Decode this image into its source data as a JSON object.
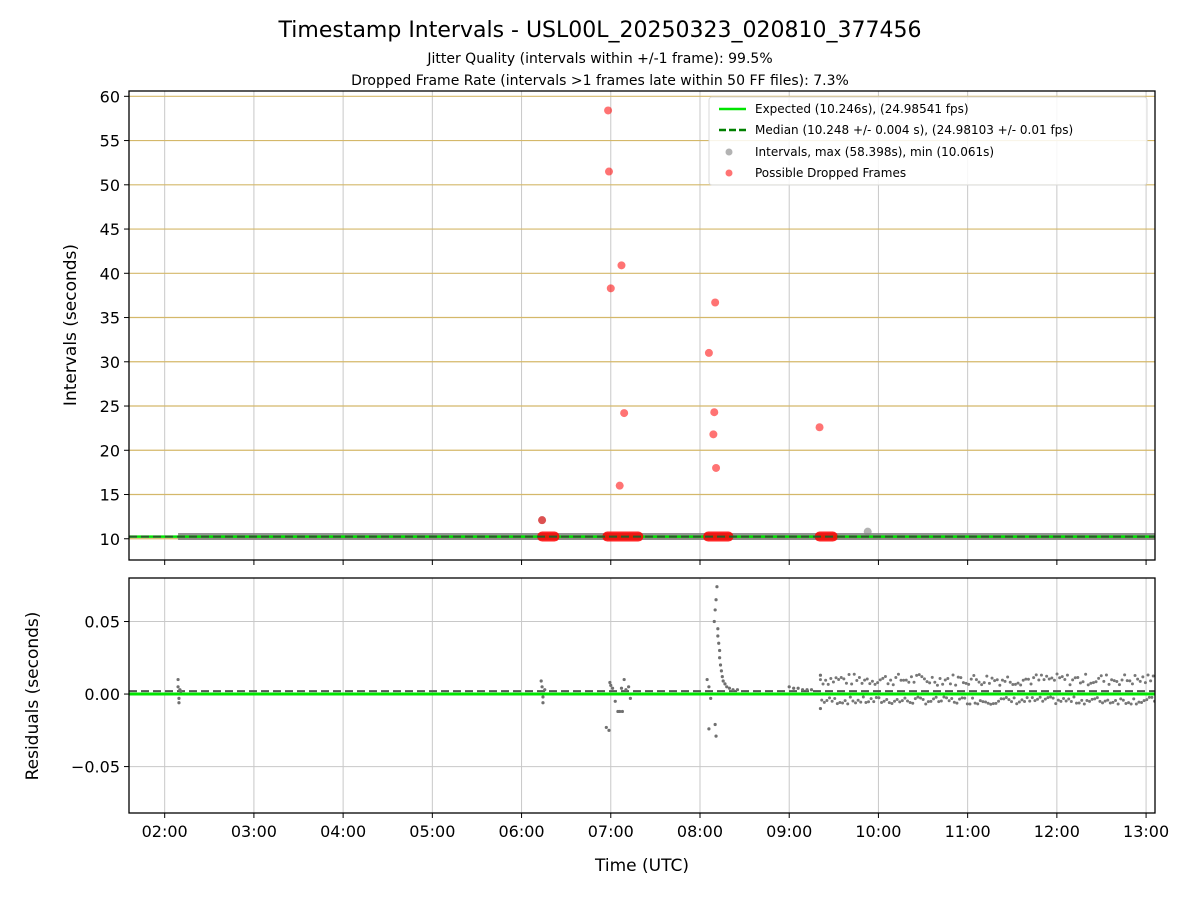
{
  "figure": {
    "title": "Timestamp Intervals - USL00L_20250323_020810_377456",
    "subtitle_lines": [
      "Jitter Quality (intervals within +/-1 frame): 99.5%",
      "Dropped Frame Rate (intervals >1 frames late within 50 FF files): 7.3%"
    ],
    "xlabel": "Time (UTC)"
  },
  "chart_data": [
    {
      "type": "scatter",
      "ylabel": "Intervals (seconds)",
      "xlim": [
        1.6,
        13.1
      ],
      "ylim": [
        7.6,
        60.6
      ],
      "yticks": [
        10,
        15,
        20,
        25,
        30,
        35,
        40,
        45,
        50,
        55,
        60
      ],
      "grid": true,
      "legend_position": "top-right",
      "colors": {
        "expected": "#00e400",
        "median": "#008000",
        "intervals": "#808080",
        "dropped": "#ff0000",
        "hgrid": "#d4b86a",
        "vgrid": "#c8c8c8"
      },
      "series": [
        {
          "name": "Expected (10.246s), (24.98541 fps)",
          "kind": "hline",
          "y": 10.246
        },
        {
          "name": "Median (10.248 +/- 0.004 s), (24.98103 +/- 0.01 fps)",
          "kind": "dashed-hline",
          "y": 10.248
        },
        {
          "name": "Intervals, max (58.398s), min (10.061s)",
          "kind": "points",
          "band": {
            "x": [
              2.15,
              13.1
            ],
            "y": 10.25
          },
          "points": [
            {
              "x": 6.23,
              "y": 12.1
            },
            {
              "x": 9.88,
              "y": 10.8
            }
          ]
        },
        {
          "name": "Possible Dropped Frames",
          "kind": "points",
          "points": [
            {
              "x": 6.23,
              "y": 12.1
            },
            {
              "x": 6.97,
              "y": 58.4
            },
            {
              "x": 6.98,
              "y": 51.5
            },
            {
              "x": 7.0,
              "y": 38.3
            },
            {
              "x": 7.12,
              "y": 40.9
            },
            {
              "x": 7.1,
              "y": 16.0
            },
            {
              "x": 7.15,
              "y": 24.2
            },
            {
              "x": 8.1,
              "y": 31.0
            },
            {
              "x": 8.17,
              "y": 36.7
            },
            {
              "x": 8.16,
              "y": 24.3
            },
            {
              "x": 8.15,
              "y": 21.8
            },
            {
              "x": 8.18,
              "y": 18.0
            },
            {
              "x": 9.34,
              "y": 22.6
            }
          ],
          "clusters": [
            [
              6.22,
              6.38
            ],
            [
              6.95,
              7.32
            ],
            [
              8.08,
              8.33
            ],
            [
              9.33,
              9.5
            ]
          ],
          "cluster_y": 10.25
        }
      ]
    },
    {
      "type": "scatter",
      "ylabel": "Residuals (seconds)",
      "xlim": [
        1.6,
        13.1
      ],
      "ylim": [
        -0.082,
        0.08
      ],
      "yticks": [
        0.05,
        0.0,
        -0.05
      ],
      "ytick_labels": [
        "0.05",
        "0.00",
        "−0.05"
      ],
      "xticks": [
        2,
        3,
        4,
        5,
        6,
        7,
        8,
        9,
        10,
        11,
        12,
        13
      ],
      "xtick_labels": [
        "02:00",
        "03:00",
        "04:00",
        "05:00",
        "06:00",
        "07:00",
        "08:00",
        "09:00",
        "10:00",
        "11:00",
        "12:00",
        "13:00"
      ],
      "grid": true,
      "expected_y": 0.0,
      "median_y": 0.002,
      "residual_points": [
        {
          "x": 2.15,
          "y": 0.01
        },
        {
          "x": 2.15,
          "y": 0.005
        },
        {
          "x": 2.16,
          "y": -0.003
        },
        {
          "x": 2.16,
          "y": -0.006
        },
        {
          "x": 2.17,
          "y": 0.003
        },
        {
          "x": 2.18,
          "y": 0.002
        },
        {
          "x": 6.22,
          "y": 0.009
        },
        {
          "x": 6.23,
          "y": 0.005
        },
        {
          "x": 6.24,
          "y": -0.002
        },
        {
          "x": 6.24,
          "y": -0.006
        },
        {
          "x": 6.26,
          "y": 0.003
        },
        {
          "x": 6.95,
          "y": -0.023
        },
        {
          "x": 6.98,
          "y": -0.025
        },
        {
          "x": 6.99,
          "y": 0.008
        },
        {
          "x": 7.0,
          "y": 0.006
        },
        {
          "x": 7.02,
          "y": 0.004
        },
        {
          "x": 7.05,
          "y": -0.005
        },
        {
          "x": 7.08,
          "y": -0.012
        },
        {
          "x": 7.1,
          "y": -0.012
        },
        {
          "x": 7.12,
          "y": 0.004
        },
        {
          "x": 7.13,
          "y": -0.012
        },
        {
          "x": 7.15,
          "y": 0.01
        },
        {
          "x": 7.17,
          "y": 0.003
        },
        {
          "x": 7.2,
          "y": 0.005
        },
        {
          "x": 7.22,
          "y": -0.003
        },
        {
          "x": 8.08,
          "y": 0.01
        },
        {
          "x": 8.1,
          "y": 0.005
        },
        {
          "x": 8.12,
          "y": -0.003
        },
        {
          "x": 8.1,
          "y": -0.024
        },
        {
          "x": 8.17,
          "y": -0.021
        },
        {
          "x": 8.18,
          "y": -0.029
        },
        {
          "x": 8.16,
          "y": 0.05
        },
        {
          "x": 8.17,
          "y": 0.058
        },
        {
          "x": 8.18,
          "y": 0.065
        },
        {
          "x": 8.19,
          "y": 0.074
        },
        {
          "x": 8.2,
          "y": 0.045
        },
        {
          "x": 8.2,
          "y": 0.04
        },
        {
          "x": 8.21,
          "y": 0.035
        },
        {
          "x": 8.22,
          "y": 0.03
        },
        {
          "x": 8.22,
          "y": 0.025
        },
        {
          "x": 8.23,
          "y": 0.02
        },
        {
          "x": 8.24,
          "y": 0.016
        },
        {
          "x": 8.25,
          "y": 0.012
        },
        {
          "x": 8.26,
          "y": 0.009
        },
        {
          "x": 8.28,
          "y": 0.007
        },
        {
          "x": 8.3,
          "y": 0.005
        },
        {
          "x": 8.33,
          "y": 0.004
        },
        {
          "x": 8.37,
          "y": 0.003
        },
        {
          "x": 8.42,
          "y": 0.003
        },
        {
          "x": 9.0,
          "y": 0.005
        },
        {
          "x": 9.05,
          "y": 0.004
        },
        {
          "x": 9.1,
          "y": 0.004
        },
        {
          "x": 9.15,
          "y": 0.003
        },
        {
          "x": 9.2,
          "y": 0.003
        },
        {
          "x": 9.25,
          "y": 0.003
        },
        {
          "x": 9.35,
          "y": -0.01
        },
        {
          "x": 9.35,
          "y": 0.013
        }
      ],
      "noise_band": {
        "x": [
          9.35,
          13.1
        ],
        "upper": [
          0.006,
          0.014
        ],
        "lower": [
          -0.007,
          -0.002
        ]
      }
    }
  ]
}
